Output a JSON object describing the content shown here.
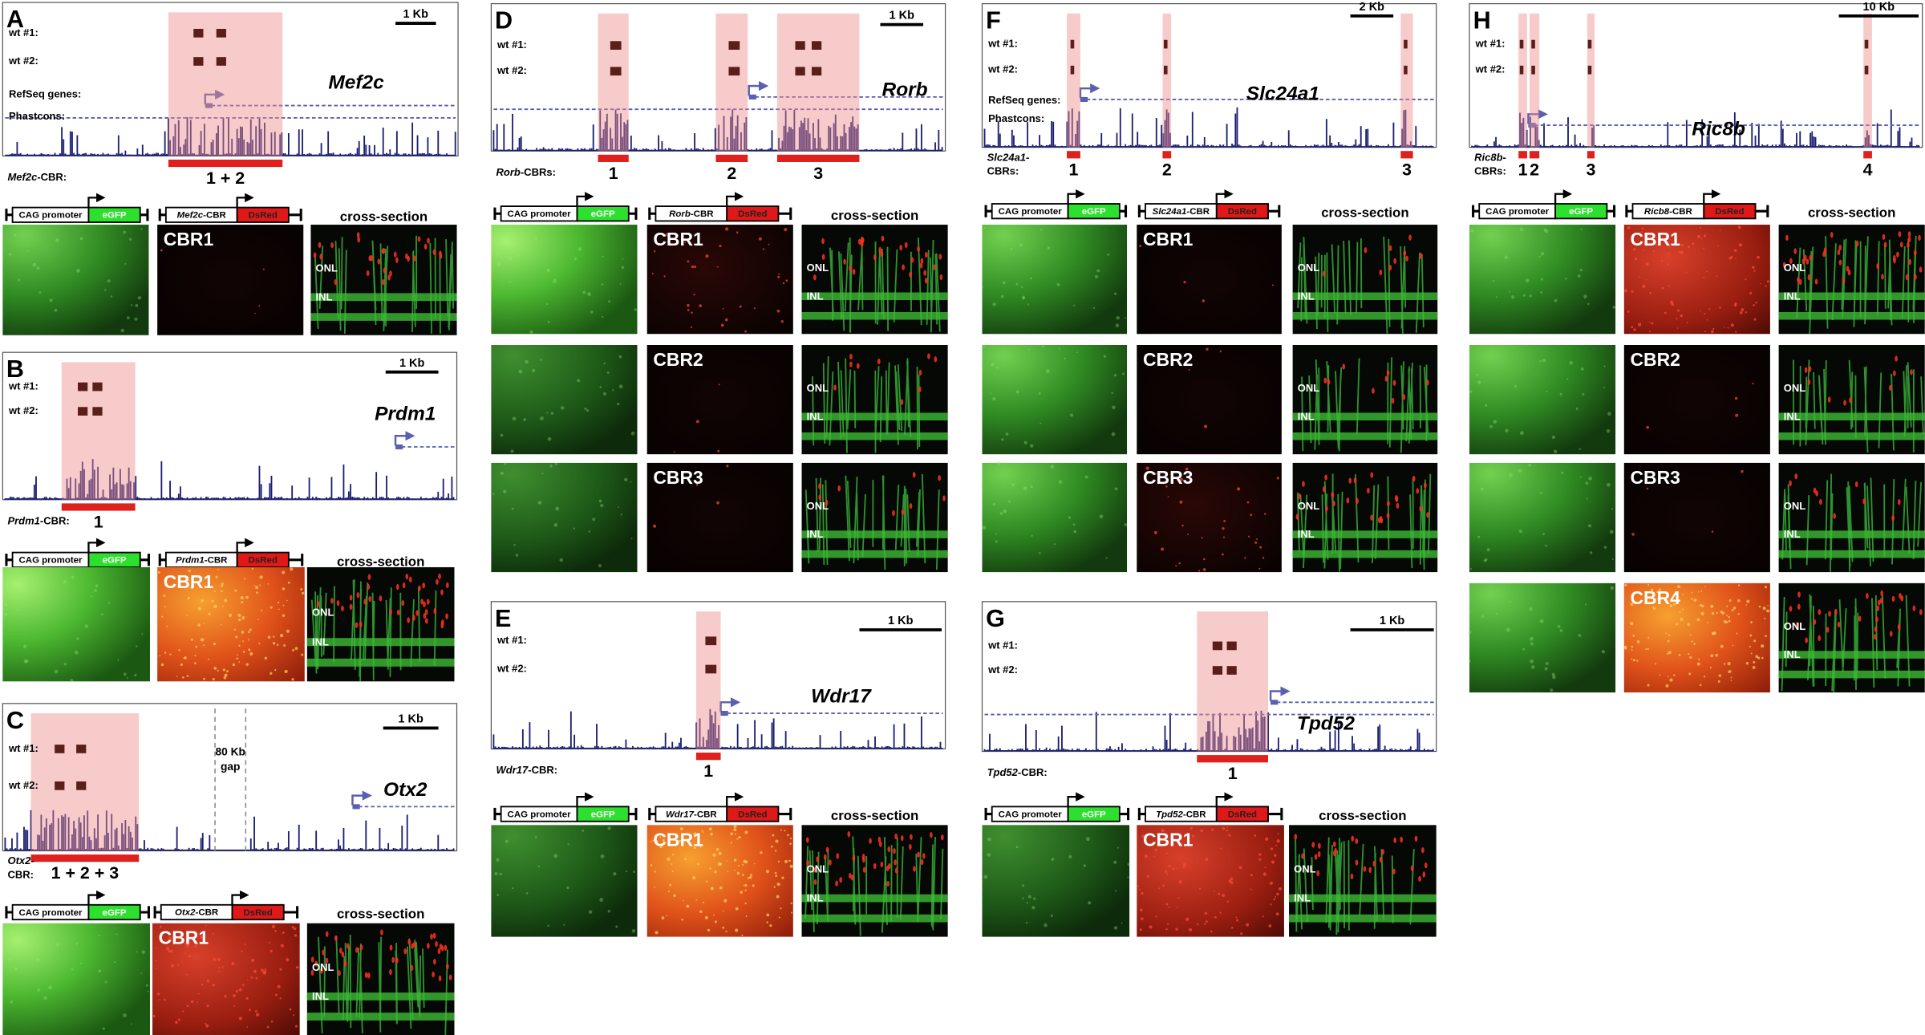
{
  "panels": [
    {
      "letter": "A",
      "scale": "1 Kb",
      "tracks": [
        "wt #1:",
        "wt #2:",
        "RefSeq genes:",
        "Phastcons:"
      ],
      "gene": "Mef2c",
      "cbr_label": {
        "gene": "Mef2c",
        "text": "-CBR:"
      },
      "cbr_numbers": [
        "1 + 2"
      ],
      "construct": {
        "promoter": "CAG promoter",
        "reporter1": "eGFP",
        "element_gene": "Mef2c",
        "element_suffix": "-CBR",
        "reporter2": "DsRed"
      },
      "section_label": "cross-section",
      "rows": [
        {
          "label": "CBR1",
          "layers": [
            "ONL",
            "INL"
          ]
        }
      ]
    },
    {
      "letter": "B",
      "scale": "1 Kb",
      "tracks": [
        "wt #1:",
        "wt #2:"
      ],
      "gene": "Prdm1",
      "cbr_label": {
        "gene": "Prdm1",
        "text": "-CBR:"
      },
      "cbr_numbers": [
        "1"
      ],
      "construct": {
        "promoter": "CAG promoter",
        "reporter1": "eGFP",
        "element_gene": "Prdm1",
        "element_suffix": "-CBR",
        "reporter2": "DsRed"
      },
      "section_label": "cross-section",
      "rows": [
        {
          "label": "CBR1",
          "layers": [
            "ONL",
            "INL"
          ]
        }
      ]
    },
    {
      "letter": "C",
      "scale": "1 Kb",
      "tracks": [
        "wt #1:",
        "wt #2:"
      ],
      "gene": "Otx2",
      "cbr_label": {
        "gene": "Otx2",
        "text": "-",
        "line2": "CBR:"
      },
      "cbr_numbers": [
        "1 + 2 + 3"
      ],
      "gap": [
        "80 Kb",
        "gap"
      ],
      "construct": {
        "promoter": "CAG promoter",
        "reporter1": "eGFP",
        "element_gene": "Otx2",
        "element_suffix": "-CBR",
        "reporter2": "DsRed"
      },
      "section_label": "cross-section",
      "rows": [
        {
          "label": "CBR1",
          "layers": [
            "ONL",
            "INL"
          ]
        }
      ]
    },
    {
      "letter": "D",
      "scale": "1 Kb",
      "tracks": [
        "wt #1:",
        "wt #2:"
      ],
      "gene": "Rorb",
      "cbr_label": {
        "gene": "Rorb",
        "text": "-CBRs:"
      },
      "cbr_numbers": [
        "1",
        "2",
        "3"
      ],
      "construct": {
        "promoter": "CAG promoter",
        "reporter1": "eGFP",
        "element_gene": "Rorb",
        "element_suffix": "-CBR",
        "reporter2": "DsRed"
      },
      "section_label": "cross-section",
      "rows": [
        {
          "label": "CBR1",
          "layers": [
            "ONL",
            "INL"
          ]
        },
        {
          "label": "CBR2",
          "layers": [
            "ONL",
            "INL"
          ]
        },
        {
          "label": "CBR3",
          "layers": [
            "ONL",
            "INL"
          ]
        }
      ]
    },
    {
      "letter": "E",
      "scale": "1 Kb",
      "tracks": [
        "wt #1:",
        "wt #2:"
      ],
      "gene": "Wdr17",
      "cbr_label": {
        "gene": "Wdr17",
        "text": "-CBR:"
      },
      "cbr_numbers": [
        "1"
      ],
      "construct": {
        "promoter": "CAG promoter",
        "reporter1": "eGFP",
        "element_gene": "Wdr17",
        "element_suffix": "-CBR",
        "reporter2": "DsRed"
      },
      "section_label": "cross-section",
      "rows": [
        {
          "label": "CBR1",
          "layers": [
            "ONL",
            "INL"
          ]
        }
      ]
    },
    {
      "letter": "F",
      "scale": "2 Kb",
      "tracks": [
        "wt #1:",
        "wt #2:",
        "RefSeq genes:",
        "Phastcons:"
      ],
      "gene": "Slc24a1",
      "cbr_label": {
        "gene": "Slc24a1",
        "text": "-",
        "line2": "CBRs:"
      },
      "cbr_numbers": [
        "1",
        "2",
        "3"
      ],
      "construct": {
        "promoter": "CAG promoter",
        "reporter1": "eGFP",
        "element_gene": "Slc24a1",
        "element_suffix": "-CBR",
        "reporter2": "DsRed"
      },
      "section_label": "cross-section",
      "rows": [
        {
          "label": "CBR1",
          "layers": [
            "ONL",
            "INL"
          ]
        },
        {
          "label": "CBR2",
          "layers": [
            "ONL",
            "INL"
          ]
        },
        {
          "label": "CBR3",
          "layers": [
            "ONL",
            "INL"
          ]
        }
      ]
    },
    {
      "letter": "G",
      "scale": "1 Kb",
      "tracks": [
        "wt #1:",
        "wt #2:"
      ],
      "gene": "Tpd52",
      "cbr_label": {
        "gene": "Tpd52",
        "text": "-CBR:"
      },
      "cbr_numbers": [
        "1"
      ],
      "construct": {
        "promoter": "CAG promoter",
        "reporter1": "eGFP",
        "element_gene": "Tpd52",
        "element_suffix": "-CBR",
        "reporter2": "DsRed"
      },
      "section_label": "cross-section",
      "rows": [
        {
          "label": "CBR1",
          "layers": [
            "ONL",
            "INL"
          ]
        }
      ]
    },
    {
      "letter": "H",
      "scale": "10 Kb",
      "tracks": [
        "wt #1:",
        "wt #2:"
      ],
      "gene": "Ric8b",
      "cbr_label": {
        "gene": "Ric8b",
        "text": "-",
        "line2": "CBRs:"
      },
      "cbr_numbers": [
        "1",
        "2",
        "3",
        "4"
      ],
      "construct": {
        "promoter": "CAG promoter",
        "reporter1": "eGFP",
        "element_gene": "Ricb8",
        "element_suffix": "-CBR",
        "reporter2": "DsRed"
      },
      "section_label": "cross-section",
      "rows": [
        {
          "label": "CBR1",
          "layers": [
            "ONL",
            "INL"
          ]
        },
        {
          "label": "CBR2",
          "layers": [
            "ONL",
            "INL"
          ]
        },
        {
          "label": "CBR3",
          "layers": [
            "ONL",
            "INL"
          ]
        },
        {
          "label": "CBR4",
          "layers": [
            "ONL",
            "INL"
          ]
        }
      ]
    }
  ]
}
